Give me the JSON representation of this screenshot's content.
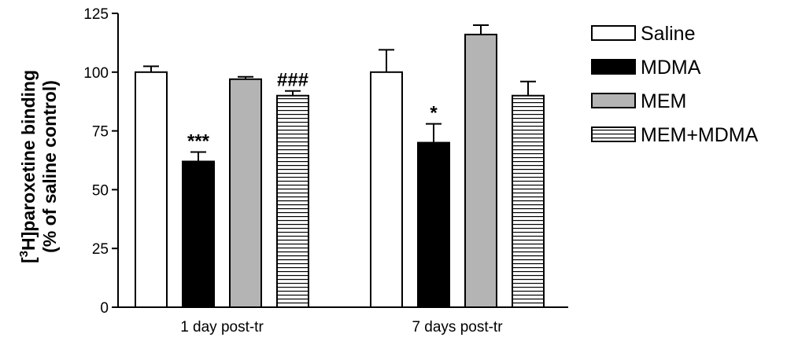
{
  "chart_data": {
    "type": "bar",
    "categories": [
      "1 day post-tr",
      "7 days post-tr"
    ],
    "ylabel_line1_prefix": "[",
    "ylabel_line1_sup": "3",
    "ylabel_line1_rest": "H]paroxetine binding",
    "ylabel_line2": "(% of saline control)",
    "ylim": [
      0,
      125
    ],
    "yticks": [
      "0",
      "25",
      "50",
      "75",
      "100",
      "125"
    ],
    "grid": false,
    "legend_position": "right",
    "series": [
      {
        "name": "Saline",
        "fill": "#ffffff",
        "pattern": "none",
        "values": [
          100,
          100
        ],
        "errors": [
          2.5,
          9.5
        ],
        "annotations": [
          "",
          ""
        ]
      },
      {
        "name": "MDMA",
        "fill": "#000000",
        "pattern": "none",
        "values": [
          62,
          70
        ],
        "errors": [
          4,
          8
        ],
        "annotations": [
          "***",
          "*"
        ]
      },
      {
        "name": "MEM",
        "fill": "#b4b4b4",
        "pattern": "none",
        "values": [
          97,
          116
        ],
        "errors": [
          1,
          4
        ],
        "annotations": [
          "",
          ""
        ]
      },
      {
        "name": "MEM+MDMA",
        "fill": "#ffffff",
        "pattern": "horizontal",
        "values": [
          90,
          90
        ],
        "errors": [
          2,
          6
        ],
        "annotations": [
          "###",
          ""
        ]
      }
    ]
  }
}
